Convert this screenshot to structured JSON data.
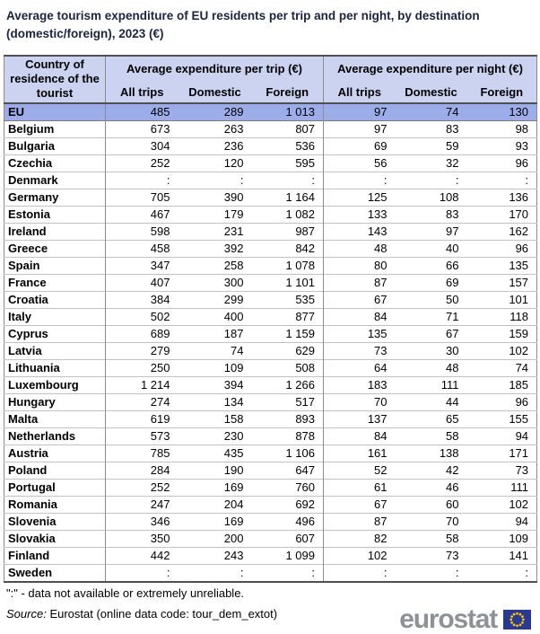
{
  "page": {
    "title": "Average tourism expenditure of EU residents per trip and per night, by destination (domestic/foreign), 2023 (€)"
  },
  "table": {
    "country_header": "Country of residence of the tourist",
    "groups": [
      {
        "label": "Average expenditure per trip (€)",
        "subcolumns": [
          "All trips",
          "Domestic",
          "Foreign"
        ]
      },
      {
        "label": "Average expenditure per night (€)",
        "subcolumns": [
          "All trips",
          "Domestic",
          "Foreign"
        ]
      }
    ]
  },
  "chart_data": {
    "type": "table",
    "title": "Average tourism expenditure of EU residents per trip and per night, by destination (domestic/foreign), 2023 (€)",
    "column_groups": [
      "Average expenditure per trip (€)",
      "Average expenditure per night (€)"
    ],
    "columns": [
      "All trips",
      "Domestic",
      "Foreign",
      "All trips",
      "Domestic",
      "Foreign"
    ],
    "missing_marker": ":",
    "rows": [
      {
        "country": "EU",
        "highlight": true,
        "values": [
          "485",
          "289",
          "1 013",
          "97",
          "74",
          "130"
        ]
      },
      {
        "country": "Belgium",
        "highlight": false,
        "values": [
          "673",
          "263",
          "807",
          "97",
          "83",
          "98"
        ]
      },
      {
        "country": "Bulgaria",
        "highlight": false,
        "values": [
          "304",
          "236",
          "536",
          "69",
          "59",
          "93"
        ]
      },
      {
        "country": "Czechia",
        "highlight": false,
        "values": [
          "252",
          "120",
          "595",
          "56",
          "32",
          "96"
        ]
      },
      {
        "country": "Denmark",
        "highlight": false,
        "values": [
          ":",
          ":",
          ":",
          ":",
          ":",
          ":"
        ]
      },
      {
        "country": "Germany",
        "highlight": false,
        "values": [
          "705",
          "390",
          "1 164",
          "125",
          "108",
          "136"
        ]
      },
      {
        "country": "Estonia",
        "highlight": false,
        "values": [
          "467",
          "179",
          "1 082",
          "133",
          "83",
          "170"
        ]
      },
      {
        "country": "Ireland",
        "highlight": false,
        "values": [
          "598",
          "231",
          "987",
          "143",
          "97",
          "162"
        ]
      },
      {
        "country": "Greece",
        "highlight": false,
        "values": [
          "458",
          "392",
          "842",
          "48",
          "40",
          "96"
        ]
      },
      {
        "country": "Spain",
        "highlight": false,
        "values": [
          "347",
          "258",
          "1 078",
          "80",
          "66",
          "135"
        ]
      },
      {
        "country": "France",
        "highlight": false,
        "values": [
          "407",
          "300",
          "1 101",
          "87",
          "69",
          "157"
        ]
      },
      {
        "country": "Croatia",
        "highlight": false,
        "values": [
          "384",
          "299",
          "535",
          "67",
          "50",
          "101"
        ]
      },
      {
        "country": "Italy",
        "highlight": false,
        "values": [
          "502",
          "400",
          "877",
          "84",
          "71",
          "118"
        ]
      },
      {
        "country": "Cyprus",
        "highlight": false,
        "values": [
          "689",
          "187",
          "1 159",
          "135",
          "67",
          "159"
        ]
      },
      {
        "country": "Latvia",
        "highlight": false,
        "values": [
          "279",
          "74",
          "629",
          "73",
          "30",
          "102"
        ]
      },
      {
        "country": "Lithuania",
        "highlight": false,
        "values": [
          "250",
          "109",
          "508",
          "64",
          "48",
          "74"
        ]
      },
      {
        "country": "Luxembourg",
        "highlight": false,
        "values": [
          "1 214",
          "394",
          "1 266",
          "183",
          "111",
          "185"
        ]
      },
      {
        "country": "Hungary",
        "highlight": false,
        "values": [
          "274",
          "134",
          "517",
          "70",
          "44",
          "96"
        ]
      },
      {
        "country": "Malta",
        "highlight": false,
        "values": [
          "619",
          "158",
          "893",
          "137",
          "65",
          "155"
        ]
      },
      {
        "country": "Netherlands",
        "highlight": false,
        "values": [
          "573",
          "230",
          "878",
          "84",
          "58",
          "94"
        ]
      },
      {
        "country": "Austria",
        "highlight": false,
        "values": [
          "785",
          "435",
          "1 106",
          "161",
          "138",
          "171"
        ]
      },
      {
        "country": "Poland",
        "highlight": false,
        "values": [
          "284",
          "190",
          "647",
          "52",
          "42",
          "73"
        ]
      },
      {
        "country": "Portugal",
        "highlight": false,
        "values": [
          "252",
          "169",
          "760",
          "61",
          "46",
          "111"
        ]
      },
      {
        "country": "Romania",
        "highlight": false,
        "values": [
          "247",
          "204",
          "692",
          "67",
          "60",
          "102"
        ]
      },
      {
        "country": "Slovenia",
        "highlight": false,
        "values": [
          "346",
          "169",
          "496",
          "87",
          "70",
          "94"
        ]
      },
      {
        "country": "Slovakia",
        "highlight": false,
        "values": [
          "350",
          "200",
          "607",
          "82",
          "58",
          "109"
        ]
      },
      {
        "country": "Finland",
        "highlight": false,
        "values": [
          "442",
          "243",
          "1 099",
          "102",
          "73",
          "141"
        ]
      },
      {
        "country": "Sweden",
        "highlight": false,
        "values": [
          ":",
          ":",
          ":",
          ":",
          ":",
          ":"
        ]
      }
    ]
  },
  "footnote": "\":\" - data not available or extremely unreliable.",
  "source": {
    "label": "Source:",
    "text": "Eurostat (online data code: tour_dem_extot)"
  },
  "logo": {
    "text": "eurostat"
  },
  "colors": {
    "header_bg": "#cbd3f0",
    "eu_row_bg": "#9dade9",
    "title_text": "#1b2440",
    "logo_text": "#8e9297",
    "flag_blue": "#2a3a94",
    "flag_star": "#ffcc00"
  }
}
